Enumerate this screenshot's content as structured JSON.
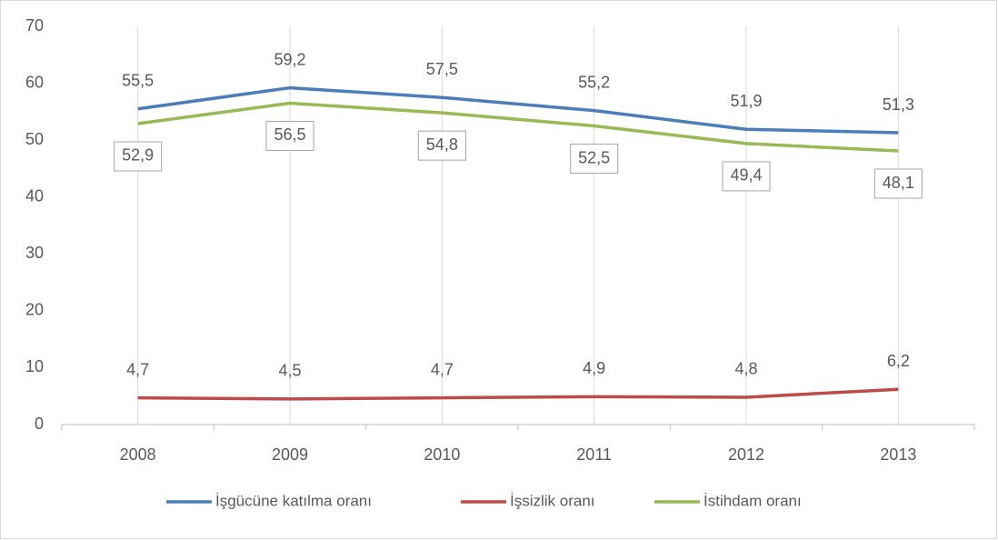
{
  "chart_data": {
    "type": "line",
    "categories": [
      "2008",
      "2009",
      "2010",
      "2011",
      "2012",
      "2013"
    ],
    "series": [
      {
        "name": "İşgücüne katılma oranı",
        "color": "#4a7ebb",
        "values": [
          55.5,
          59.2,
          57.5,
          55.2,
          51.9,
          51.3
        ],
        "value_labels": [
          "55,5",
          "59,2",
          "57,5",
          "55,2",
          "51,9",
          "51,3"
        ]
      },
      {
        "name": "İşsizlik oranı",
        "color": "#be4b48",
        "values": [
          4.7,
          4.5,
          4.7,
          4.9,
          4.8,
          6.2
        ],
        "value_labels": [
          "4,7",
          "4,5",
          "4,7",
          "4,9",
          "4,8",
          "6,2"
        ]
      },
      {
        "name": "İstihdam oranı",
        "color": "#98b954",
        "values": [
          52.9,
          56.5,
          54.8,
          52.5,
          49.4,
          48.1
        ],
        "value_labels": [
          "52,9",
          "56,5",
          "54,8",
          "52,5",
          "49,4",
          "48,1"
        ]
      }
    ],
    "ylim": [
      0,
      70
    ],
    "yticks": [
      0,
      10,
      20,
      30,
      40,
      50,
      60,
      70
    ],
    "legend": "bottom"
  }
}
